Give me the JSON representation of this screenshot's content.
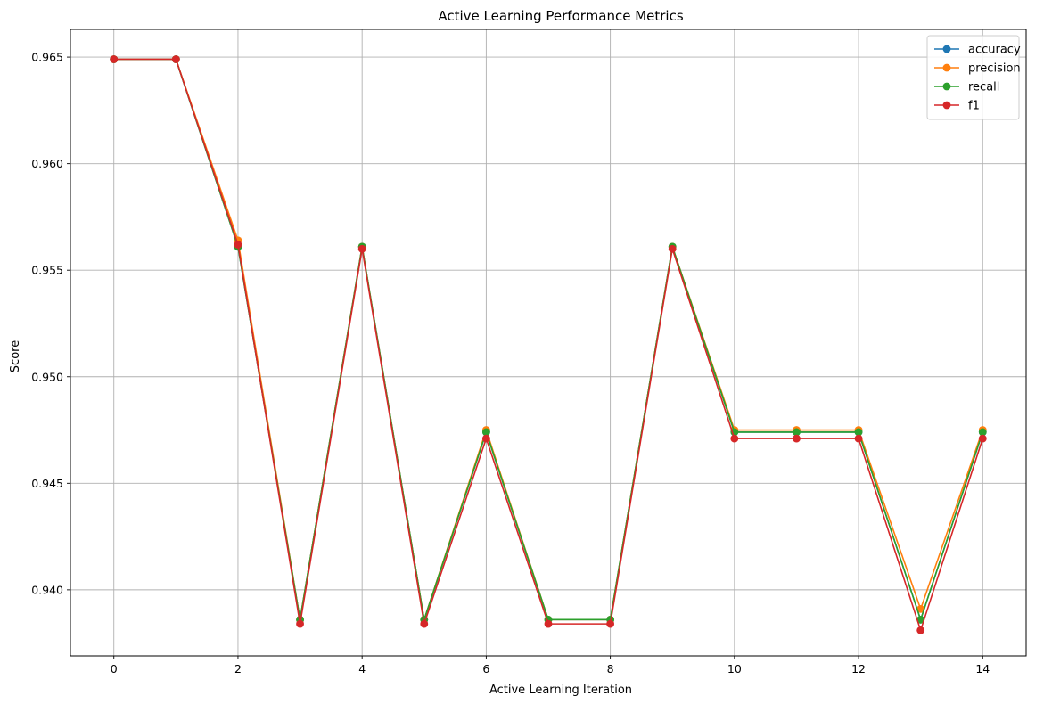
{
  "chart_data": {
    "type": "line",
    "title": "Active Learning Performance Metrics",
    "xlabel": "Active Learning Iteration",
    "ylabel": "Score",
    "x": [
      0,
      1,
      2,
      3,
      4,
      5,
      6,
      7,
      8,
      9,
      10,
      11,
      12,
      13,
      14
    ],
    "xlim": [
      -0.7,
      14.7
    ],
    "ylim": [
      0.9369,
      0.9663
    ],
    "xticks": [
      0,
      2,
      4,
      6,
      8,
      10,
      12,
      14
    ],
    "yticks": [
      0.94,
      0.945,
      0.95,
      0.955,
      0.96,
      0.965
    ],
    "grid": true,
    "legend_position": "top-right",
    "markers": "circle",
    "series": [
      {
        "name": "accuracy",
        "color": "#1f77b4",
        "values": [
          0.9649,
          0.9649,
          0.9561,
          0.9386,
          0.9561,
          0.9386,
          0.9474,
          0.9386,
          0.9386,
          0.9561,
          0.9474,
          0.9474,
          0.9474,
          0.9386,
          0.9474
        ]
      },
      {
        "name": "precision",
        "color": "#ff7f0e",
        "values": [
          0.9649,
          0.9649,
          0.9564,
          0.9386,
          0.9561,
          0.9386,
          0.9475,
          0.9386,
          0.9386,
          0.9561,
          0.9475,
          0.9475,
          0.9475,
          0.9391,
          0.9475
        ]
      },
      {
        "name": "recall",
        "color": "#2ca02c",
        "values": [
          0.9649,
          0.9649,
          0.9561,
          0.9386,
          0.9561,
          0.9386,
          0.9474,
          0.9386,
          0.9386,
          0.9561,
          0.9474,
          0.9474,
          0.9474,
          0.9386,
          0.9474
        ]
      },
      {
        "name": "f1",
        "color": "#d62728",
        "values": [
          0.9649,
          0.9649,
          0.9562,
          0.9384,
          0.956,
          0.9384,
          0.9471,
          0.9384,
          0.9384,
          0.956,
          0.9471,
          0.9471,
          0.9471,
          0.9381,
          0.9471
        ]
      }
    ]
  }
}
